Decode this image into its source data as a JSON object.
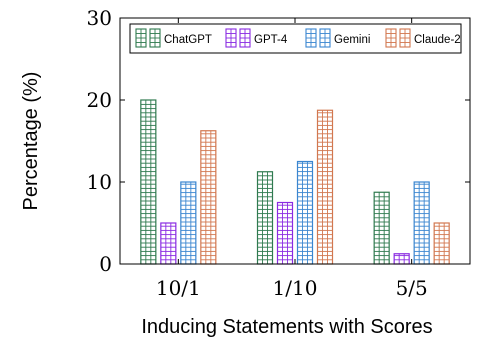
{
  "chart_data": {
    "type": "bar",
    "title": "",
    "xlabel": "Inducing Statements with Scores",
    "ylabel": "Percentage (%)",
    "categories": [
      "10/1",
      "1/10",
      "5/5"
    ],
    "ylim": [
      0,
      30
    ],
    "yticks": [
      0,
      10,
      20,
      30
    ],
    "grid": false,
    "legend_position": "top",
    "series": [
      {
        "name": "ChatGPT",
        "color": "#2f7a4f",
        "values": [
          20,
          11.25,
          8.75
        ]
      },
      {
        "name": "GPT-4",
        "color": "#8a2be2",
        "values": [
          5,
          7.5,
          1.25
        ]
      },
      {
        "name": "Gemini",
        "color": "#3a86d0",
        "values": [
          10,
          12.5,
          10
        ]
      },
      {
        "name": "Claude-2",
        "color": "#d2774f",
        "values": [
          16.25,
          18.75,
          5
        ]
      }
    ]
  }
}
